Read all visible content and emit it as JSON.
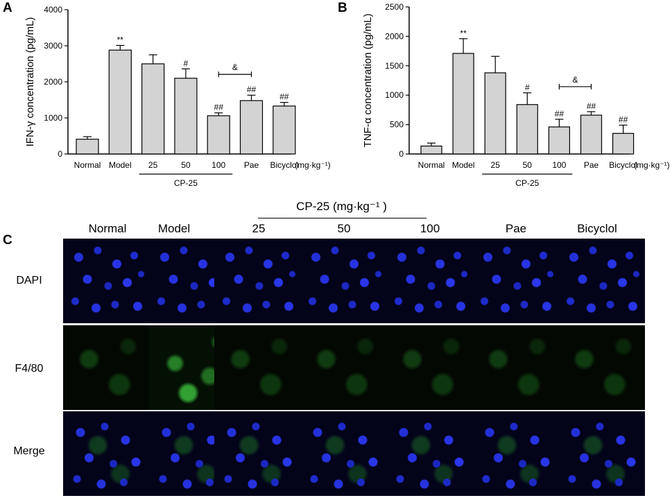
{
  "panels": {
    "a": "A",
    "b": "B",
    "c": "C"
  },
  "chart_data": [
    {
      "type": "bar",
      "ylabel": "IFN-γ concentration (pg/mL)",
      "ylim": [
        0,
        4000
      ],
      "yticks": [
        0,
        1000,
        2000,
        3000,
        4000
      ],
      "categories": [
        "Normal",
        "Model",
        "25",
        "50",
        "100",
        "Pae",
        "Bicyclol"
      ],
      "values": [
        410,
        2880,
        2500,
        2100,
        1060,
        1480,
        1330
      ],
      "errors": [
        70,
        130,
        250,
        260,
        80,
        150,
        100
      ],
      "significance": [
        "",
        "**",
        "",
        "#",
        "##",
        "##",
        "##"
      ],
      "comparison": {
        "from": "100",
        "to": "Pae",
        "label": "&"
      },
      "unit": "(mg·kg⁻¹)",
      "group": {
        "label": "CP-25",
        "members": [
          "25",
          "50",
          "100"
        ]
      },
      "bar_color": "#d3d3d3"
    },
    {
      "type": "bar",
      "ylabel": "TNF-α concentration (pg/mL)",
      "ylim": [
        0,
        2500
      ],
      "yticks": [
        0,
        500,
        1000,
        1500,
        2000,
        2500
      ],
      "categories": [
        "Normal",
        "Model",
        "25",
        "50",
        "100",
        "Pae",
        "Bicyclol"
      ],
      "values": [
        135,
        1710,
        1380,
        840,
        460,
        660,
        350
      ],
      "errors": [
        50,
        250,
        280,
        200,
        130,
        60,
        140
      ],
      "significance": [
        "",
        "**",
        "",
        "#",
        "##",
        "##",
        "##"
      ],
      "comparison": {
        "from": "100",
        "to": "Pae",
        "label": "&"
      },
      "unit": "(mg·kg⁻¹)",
      "group": {
        "label": "CP-25",
        "members": [
          "25",
          "50",
          "100"
        ]
      },
      "bar_color": "#d3d3d3"
    }
  ],
  "panelC": {
    "group_title": "CP-25 (mg·kg⁻¹ )",
    "columns": [
      "Normal",
      "Model",
      "25",
      "50",
      "100",
      "Pae",
      "Bicyclol"
    ],
    "rows": [
      "DAPI",
      "F4/80",
      "Merge"
    ]
  }
}
